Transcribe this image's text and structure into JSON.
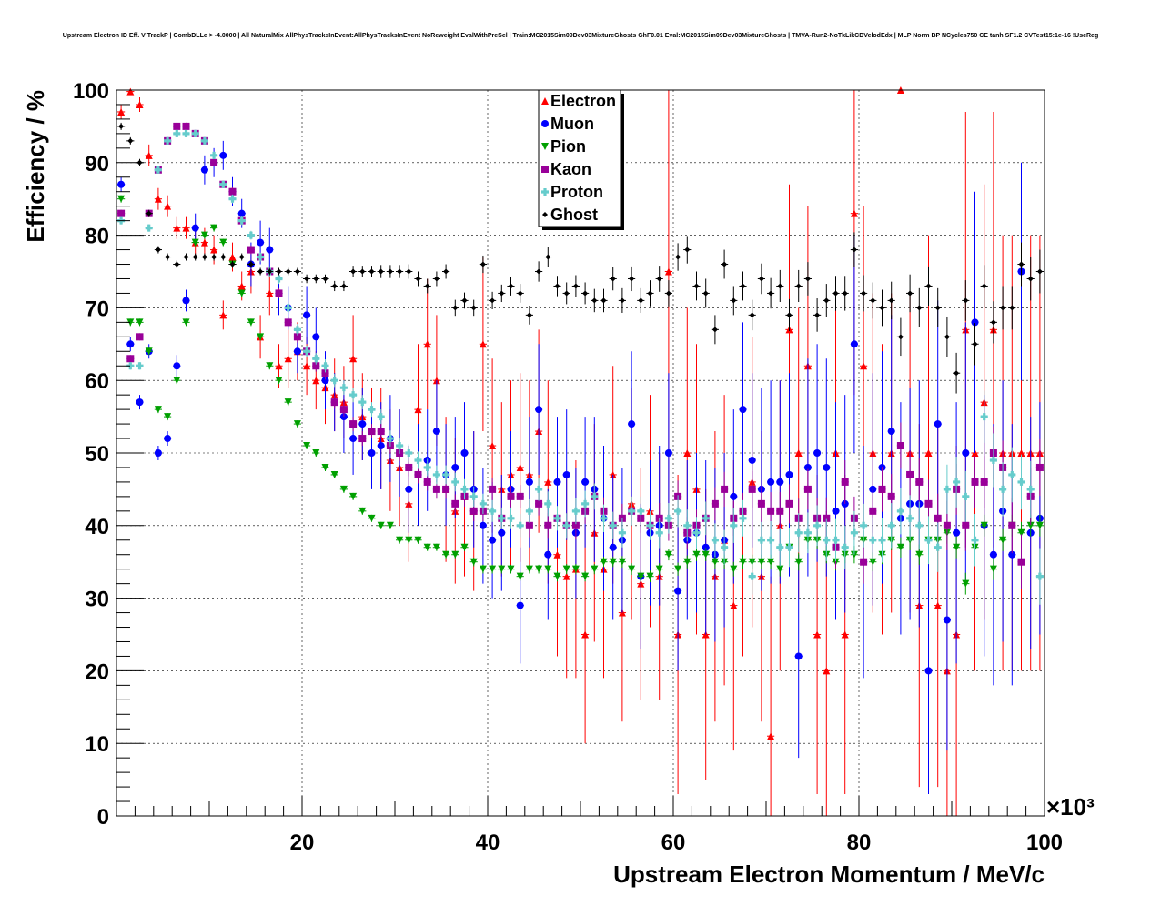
{
  "title": "Upstream Electron ID Eff. V TrackP | CombDLLe > -4.0000 | All NaturalMix AllPhysTracksInEvent:AllPhysTracksInEvent NoReweight EvalWithPreSel | Train:MC2015Sim09Dev03MixtureGhosts GhF0.01 Eval:MC2015Sim09Dev03MixtureGhosts | TMVA-Run2-NoTkLikCDVelodEdx | MLP Norm BP NCycles750 CE tanh SF1.2 CVTest15:1e-16 !UseReg",
  "chart_data": {
    "type": "scatter",
    "xlabel": "Upstream Electron Momentum / MeV/c",
    "ylabel": "Efficiency / %",
    "x_multiplier_label": "×10³",
    "xlim": [
      0,
      100
    ],
    "ylim": [
      0,
      100
    ],
    "x_ticks": [
      20,
      40,
      60,
      80,
      100
    ],
    "y_ticks": [
      0,
      10,
      20,
      30,
      40,
      50,
      60,
      70,
      80,
      90,
      100
    ],
    "grid": true,
    "legend_position": "top-center",
    "x": [
      1,
      2,
      3,
      4,
      5,
      6,
      7,
      8,
      9,
      10,
      11,
      12,
      13,
      14,
      15,
      16,
      17,
      18,
      19,
      20,
      21,
      22,
      23,
      24,
      25,
      26,
      27,
      28,
      29,
      30,
      31,
      32,
      33,
      34,
      35,
      36,
      37,
      38,
      39,
      40,
      41,
      42,
      43,
      44,
      45,
      46,
      47,
      48,
      49,
      50,
      51,
      52,
      53,
      54,
      55,
      56,
      57,
      58,
      59,
      60,
      61,
      62,
      63,
      64,
      65,
      66,
      67,
      68,
      69,
      70,
      71,
      72,
      73,
      74,
      75,
      76,
      77,
      78,
      79,
      80,
      81,
      82,
      83,
      84,
      85,
      86,
      87,
      88,
      89,
      90,
      91,
      92,
      93,
      94,
      95,
      96,
      97,
      98,
      99,
      100
    ],
    "series": [
      {
        "name": "Electron",
        "color": "#ff0000",
        "marker": "triangle-up",
        "values": [
          97,
          99.8,
          98,
          91,
          85,
          84,
          81,
          81,
          79,
          79,
          78,
          69,
          77,
          73,
          75,
          66,
          72,
          62,
          63,
          64,
          62,
          60,
          59,
          58,
          57,
          63,
          55,
          53,
          52,
          49,
          48,
          43,
          56,
          65,
          60,
          45,
          42,
          44,
          42,
          65,
          51,
          45,
          47,
          48,
          47,
          53,
          46,
          36,
          33,
          34,
          25,
          39,
          34,
          47,
          28,
          43,
          32,
          42,
          33,
          75,
          25,
          50,
          45,
          25,
          33,
          38,
          29,
          42,
          46,
          33,
          11,
          40,
          67,
          50,
          62,
          25,
          20,
          50,
          25,
          83,
          62,
          50,
          45,
          50,
          100,
          50,
          29,
          50,
          29,
          20,
          25,
          67,
          50,
          57,
          67,
          50,
          50,
          50,
          50,
          50
        ],
        "errors": [
          1,
          0.3,
          1,
          1.5,
          1.5,
          1.5,
          1.5,
          1.5,
          2,
          2,
          2,
          2,
          2,
          2,
          3,
          3,
          3,
          3,
          4,
          4,
          4,
          4,
          5,
          5,
          5,
          6,
          6,
          6,
          7,
          7,
          8,
          8,
          9,
          9,
          9,
          10,
          10,
          11,
          11,
          12,
          12,
          12,
          13,
          13,
          13,
          14,
          14,
          14,
          14,
          15,
          15,
          15,
          15,
          15,
          15,
          16,
          16,
          16,
          17,
          35,
          22,
          20,
          20,
          20,
          20,
          20,
          20,
          20,
          20,
          20,
          22,
          20,
          20,
          20,
          22,
          22,
          22,
          22,
          22,
          25,
          22,
          22,
          20,
          22,
          0.5,
          22,
          25,
          30,
          25,
          25,
          26,
          30,
          30,
          30,
          30,
          30,
          30,
          30,
          30,
          30
        ]
      },
      {
        "name": "Muon",
        "color": "#0000ff",
        "marker": "circle",
        "values": [
          87,
          65,
          57,
          64,
          50,
          52,
          62,
          71,
          81,
          89,
          90,
          91,
          86,
          83,
          76,
          79,
          78,
          72,
          70,
          64,
          69,
          66,
          60,
          57,
          55,
          52,
          54,
          50,
          51,
          52,
          50,
          45,
          47,
          49,
          53,
          47,
          48,
          50,
          45,
          40,
          38,
          39,
          45,
          29,
          46,
          56,
          36,
          46,
          47,
          39,
          46,
          45,
          41,
          37,
          38,
          54,
          33,
          39,
          40,
          50,
          31,
          38,
          39,
          37,
          36,
          38,
          44,
          56,
          49,
          45,
          46,
          46,
          47,
          22,
          48,
          50,
          48,
          42,
          43,
          65,
          35,
          45,
          48,
          53,
          41,
          43,
          43,
          20,
          54,
          27,
          39,
          50,
          68,
          40,
          36,
          42,
          36,
          75,
          39,
          41
        ],
        "errors": [
          1,
          1,
          1,
          1,
          1,
          1,
          1.5,
          1.5,
          2,
          2,
          2,
          2,
          2,
          2,
          3,
          3,
          3,
          3,
          3,
          3,
          4,
          4,
          4,
          4,
          5,
          5,
          5,
          5,
          6,
          6,
          6,
          6,
          7,
          7,
          7,
          7,
          7,
          7,
          8,
          8,
          8,
          8,
          8,
          8,
          9,
          9,
          9,
          9,
          9,
          9,
          9,
          10,
          10,
          10,
          10,
          10,
          10,
          10,
          11,
          11,
          11,
          11,
          11,
          12,
          12,
          12,
          12,
          12,
          12,
          14,
          14,
          14,
          14,
          14,
          15,
          15,
          15,
          15,
          15,
          15,
          16,
          16,
          16,
          16,
          16,
          16,
          17,
          17,
          17,
          18,
          18,
          18,
          18,
          18,
          18,
          18,
          18,
          15,
          16,
          16
        ]
      },
      {
        "name": "Pion",
        "color": "#00a000",
        "marker": "triangle-down",
        "values": [
          85,
          68,
          68,
          64,
          56,
          55,
          60,
          68,
          79,
          80,
          81,
          79,
          76,
          72,
          68,
          66,
          62,
          60,
          57,
          54,
          51,
          50,
          48,
          47,
          45,
          44,
          42,
          41,
          40,
          40,
          38,
          38,
          38,
          37,
          37,
          36,
          36,
          37,
          35,
          34,
          34,
          34,
          34,
          33,
          34,
          34,
          34,
          33,
          34,
          34,
          33,
          34,
          35,
          35,
          35,
          34,
          33,
          33,
          34,
          36,
          34,
          35,
          36,
          36,
          35,
          35,
          34,
          35,
          35,
          35,
          35,
          34,
          37,
          35,
          38,
          38,
          36,
          35,
          36,
          36,
          38,
          35,
          36,
          38,
          37,
          38,
          36,
          38,
          38,
          39,
          37,
          32,
          37,
          40,
          34,
          38,
          40,
          39,
          40,
          40
        ],
        "errors": [
          0.5,
          0.5,
          0.5,
          0.5,
          0.5,
          0.5,
          0.5,
          0.5,
          0.5,
          0.5,
          0.5,
          0.5,
          0.5,
          0.5,
          0.5,
          0.5,
          0.5,
          0.5,
          0.5,
          0.5,
          0.5,
          0.5,
          0.5,
          0.5,
          0.5,
          0.5,
          0.5,
          0.5,
          0.5,
          0.5,
          0.5,
          0.5,
          0.5,
          0.5,
          0.5,
          0.5,
          0.5,
          0.5,
          0.6,
          0.6,
          0.6,
          0.6,
          0.6,
          0.6,
          0.6,
          0.6,
          0.6,
          0.7,
          0.7,
          0.7,
          0.7,
          0.7,
          0.7,
          0.7,
          0.8,
          0.8,
          0.8,
          0.8,
          0.8,
          0.8,
          0.9,
          0.9,
          0.9,
          0.9,
          1,
          1,
          1,
          1,
          1,
          1,
          1,
          1,
          1.2,
          1.2,
          1.2,
          1.2,
          1.2,
          1.2,
          1.2,
          1.2,
          1.3,
          1.3,
          1.3,
          1.4,
          1.4,
          1.4,
          1.4,
          1.5,
          1.5,
          1.5,
          1.5,
          1.5,
          1.5,
          1.5,
          1.5,
          1.5,
          1.5,
          1.5,
          1.5,
          1.5
        ]
      },
      {
        "name": "Kaon",
        "color": "#990099",
        "marker": "square",
        "values": [
          83,
          63,
          66,
          83,
          89,
          93,
          95,
          95,
          94,
          93,
          90,
          87,
          86,
          82,
          78,
          77,
          75,
          72,
          68,
          66,
          64,
          62,
          61,
          57,
          56,
          54,
          52,
          53,
          53,
          51,
          50,
          48,
          47,
          46,
          45,
          45,
          43,
          44,
          42,
          42,
          45,
          41,
          44,
          44,
          40,
          43,
          40,
          41,
          40,
          40,
          42,
          44,
          42,
          40,
          41,
          42,
          41,
          40,
          41,
          40,
          44,
          39,
          40,
          41,
          43,
          45,
          41,
          42,
          45,
          43,
          42,
          42,
          43,
          41,
          45,
          41,
          41,
          37,
          46,
          41,
          35,
          42,
          45,
          44,
          51,
          47,
          46,
          43,
          41,
          40,
          45,
          40,
          46,
          46,
          50,
          48,
          40,
          35,
          44,
          48
        ],
        "errors": [
          0.5,
          0.5,
          0.5,
          0.5,
          0.5,
          0.5,
          0.5,
          0.5,
          0.5,
          0.5,
          0.5,
          0.5,
          0.6,
          0.6,
          0.6,
          0.6,
          0.7,
          0.7,
          0.7,
          0.8,
          0.8,
          0.8,
          0.9,
          0.9,
          1,
          1,
          1,
          1,
          1,
          1.1,
          1.1,
          1.2,
          1.2,
          1.2,
          1.3,
          1.3,
          1.3,
          1.4,
          1.4,
          1.4,
          1.5,
          1.5,
          1.5,
          1.6,
          1.6,
          1.6,
          1.7,
          1.7,
          1.7,
          1.8,
          1.8,
          1.8,
          1.9,
          1.9,
          2,
          2,
          2,
          2,
          2.1,
          2.1,
          2.2,
          2.2,
          2.2,
          2.3,
          2.3,
          2.4,
          2.4,
          2.5,
          2.5,
          2.5,
          2.6,
          2.6,
          2.7,
          2.7,
          2.8,
          2.8,
          2.9,
          2.9,
          3,
          3,
          3,
          3,
          3.1,
          3.1,
          3.2,
          3.2,
          3.3,
          3.3,
          3.4,
          3.4,
          3.5,
          3.5,
          3.6,
          3.6,
          3.7,
          3.7,
          3.8,
          3.8,
          3.9,
          3.9
        ]
      },
      {
        "name": "Proton",
        "color": "#66cccc",
        "marker": "cross",
        "values": [
          82,
          62,
          62,
          81,
          89,
          93,
          94,
          94,
          94,
          93,
          91,
          87,
          85,
          82,
          80,
          77,
          75,
          74,
          70,
          67,
          64,
          63,
          62,
          60,
          59,
          58,
          57,
          56,
          55,
          52,
          51,
          50,
          49,
          48,
          47,
          47,
          46,
          45,
          44,
          43,
          42,
          41,
          41,
          40,
          42,
          45,
          43,
          41,
          40,
          42,
          43,
          44,
          41,
          40,
          39,
          42,
          42,
          40,
          39,
          41,
          42,
          40,
          39,
          41,
          38,
          37,
          40,
          41,
          33,
          38,
          38,
          37,
          37,
          39,
          39,
          40,
          38,
          38,
          37,
          39,
          40,
          38,
          38,
          40,
          42,
          41,
          40,
          38,
          37,
          45,
          46,
          44,
          38,
          55,
          49,
          45,
          47,
          46,
          45,
          33
        ],
        "errors": [
          0.5,
          0.5,
          0.5,
          0.5,
          0.5,
          0.5,
          0.5,
          0.5,
          0.5,
          0.5,
          0.5,
          0.5,
          0.6,
          0.6,
          0.6,
          0.6,
          0.7,
          0.7,
          0.7,
          0.8,
          0.8,
          0.8,
          0.9,
          0.9,
          1,
          1,
          1,
          1,
          1,
          1.1,
          1.1,
          1.2,
          1.2,
          1.2,
          1.3,
          1.3,
          1.3,
          1.4,
          1.4,
          1.4,
          1.5,
          1.5,
          1.5,
          1.6,
          1.6,
          1.6,
          1.7,
          1.7,
          1.7,
          1.8,
          1.8,
          1.8,
          1.9,
          1.9,
          2,
          2,
          2,
          2,
          2.1,
          2.1,
          2.2,
          2.2,
          2.2,
          2.3,
          2.3,
          2.4,
          2.4,
          2.5,
          2.5,
          2.5,
          2.6,
          2.6,
          2.7,
          2.7,
          2.8,
          2.8,
          2.9,
          2.9,
          3,
          3,
          3,
          3,
          3.1,
          3.1,
          3.2,
          3.2,
          3.3,
          3.3,
          3.4,
          3.4,
          3.5,
          3.5,
          3.6,
          3.6,
          3.7,
          3.7,
          3.8,
          3.8,
          3.9,
          3.9
        ]
      },
      {
        "name": "Ghost",
        "color": "#000000",
        "marker": "diamond",
        "values": [
          95,
          93,
          90,
          83,
          78,
          77,
          76,
          77,
          77,
          77,
          77,
          77,
          76,
          77,
          76,
          75,
          75,
          75,
          75,
          75,
          74,
          74,
          74,
          73,
          73,
          75,
          75,
          75,
          75,
          75,
          75,
          75,
          74,
          73,
          74,
          75,
          70,
          71,
          70,
          76,
          71,
          72,
          73,
          72,
          69,
          75,
          77,
          73,
          72,
          73,
          72,
          71,
          71,
          74,
          71,
          74,
          71,
          72,
          74,
          72,
          77,
          78,
          73,
          72,
          67,
          76,
          71,
          73,
          69,
          74,
          72,
          73,
          69,
          73,
          74,
          69,
          71,
          72,
          72,
          78,
          72,
          71,
          70,
          71,
          66,
          72,
          70,
          73,
          70,
          66,
          61,
          71,
          65,
          73,
          68,
          70,
          70,
          76,
          74,
          75
        ],
        "errors": [
          0.5,
          0.5,
          0.5,
          0.5,
          0.5,
          0.5,
          0.5,
          0.5,
          0.5,
          0.5,
          0.5,
          0.5,
          0.5,
          0.5,
          0.5,
          0.5,
          0.5,
          0.5,
          0.5,
          0.5,
          0.6,
          0.6,
          0.6,
          0.7,
          0.7,
          0.8,
          0.8,
          0.8,
          0.9,
          0.9,
          0.9,
          1,
          1,
          1,
          1,
          1,
          1.1,
          1.1,
          1.1,
          1.2,
          1.2,
          1.2,
          1.3,
          1.3,
          1.3,
          1.4,
          1.4,
          1.4,
          1.5,
          1.5,
          1.5,
          1.6,
          1.6,
          1.6,
          1.7,
          1.7,
          1.7,
          1.8,
          1.8,
          1.8,
          1.9,
          1.9,
          2,
          2,
          2,
          2,
          2,
          2,
          2.1,
          2.1,
          2.1,
          2.2,
          2.2,
          2.2,
          2.3,
          2.3,
          2.3,
          2.4,
          2.4,
          2.4,
          2.5,
          2.5,
          2.5,
          2.6,
          2.6,
          2.6,
          2.7,
          2.7,
          2.7,
          2.8,
          2.8,
          2.8,
          2.9,
          2.9,
          2.9,
          3,
          3,
          3,
          3,
          3
        ]
      }
    ]
  }
}
